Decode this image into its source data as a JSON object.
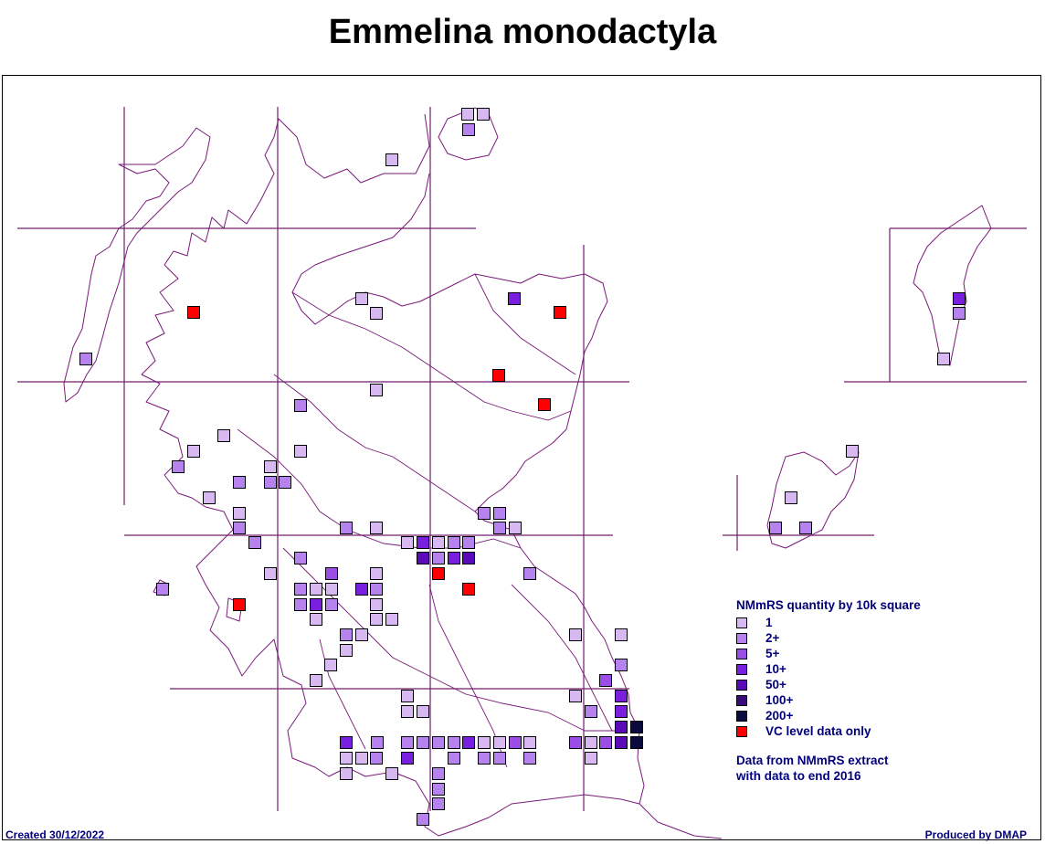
{
  "title": "Emmelina monodactyla",
  "legend": {
    "heading": "NMmRS quantity by 10k square",
    "items": [
      {
        "label": "1",
        "color": "#d8b8f0"
      },
      {
        "label": "2+",
        "color": "#b582ee"
      },
      {
        "label": "5+",
        "color": "#9a4ee6"
      },
      {
        "label": "10+",
        "color": "#7a1ee0"
      },
      {
        "label": "50+",
        "color": "#5a0ab8"
      },
      {
        "label": "100+",
        "color": "#3a0a7a"
      },
      {
        "label": "200+",
        "color": "#0a0a40"
      },
      {
        "label": "VC level data only",
        "color": "#ff0000"
      }
    ]
  },
  "note": {
    "line1": "Data from NMmRS extract",
    "line2": "with data to end 2016"
  },
  "footer": {
    "created": "Created 30/12/2022",
    "produced": "Produced by DMAP"
  }
}
